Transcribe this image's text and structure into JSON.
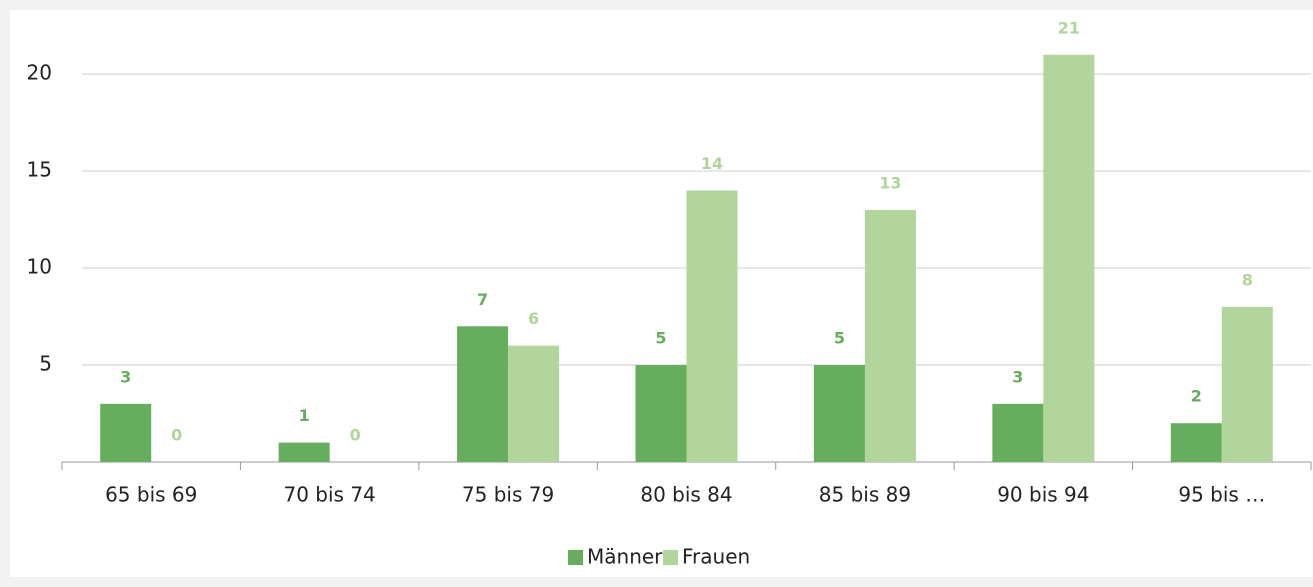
{
  "chart_data": {
    "type": "bar",
    "categories": [
      "65 bis 69",
      "70 bis 74",
      "75 bis 79",
      "80 bis 84",
      "85 bis 89",
      "90 bis 94",
      "95 bis …"
    ],
    "series": [
      {
        "name": "Männer",
        "color": "#66ad5e",
        "values": [
          3,
          1,
          7,
          5,
          5,
          3,
          2
        ]
      },
      {
        "name": "Frauen",
        "color": "#b1d59b",
        "values": [
          0,
          0,
          6,
          14,
          13,
          21,
          8
        ]
      }
    ],
    "ylim": [
      0,
      23
    ],
    "yticks": [
      5,
      10,
      15,
      20
    ],
    "grid": true,
    "legend": "bottom"
  }
}
